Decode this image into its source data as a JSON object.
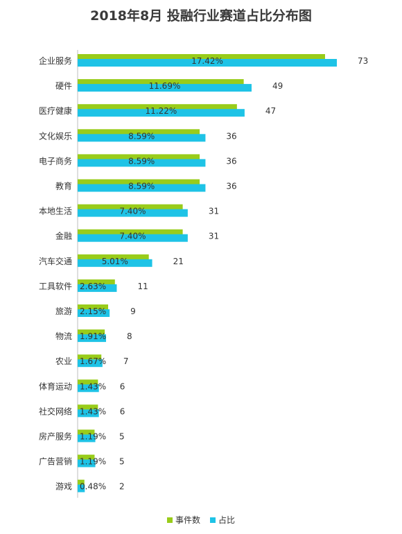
{
  "colors": {
    "count": "#99cc1a",
    "share": "#1ec3e6",
    "axis": "#bdbdbd",
    "text": "#333333"
  },
  "chart_data": {
    "type": "bar",
    "orientation": "horizontal",
    "title": "2018年8月 投融行业赛道占比分布图",
    "categories": [
      "企业服务",
      "硬件",
      "医疗健康",
      "文化娱乐",
      "电子商务",
      "教育",
      "本地生活",
      "金融",
      "汽车交通",
      "工具软件",
      "旅游",
      "物流",
      "农业",
      "体育运动",
      "社交网络",
      "房产服务",
      "广告营销",
      "游戏"
    ],
    "series": [
      {
        "name": "事件数",
        "values": [
          73,
          49,
          47,
          36,
          36,
          36,
          31,
          31,
          21,
          11,
          9,
          8,
          7,
          6,
          6,
          5,
          5,
          2
        ]
      },
      {
        "name": "占比",
        "values": [
          "17.42%",
          "11.69%",
          "11.22%",
          "8.59%",
          "8.59%",
          "8.59%",
          "7.40%",
          "7.40%",
          "5.01%",
          "2.63%",
          "2.15%",
          "1.91%",
          "1.67%",
          "1.43%",
          "1.43%",
          "1.19%",
          "1.19%",
          "0.48%"
        ]
      }
    ],
    "legend_position": "bottom",
    "grid": false
  }
}
